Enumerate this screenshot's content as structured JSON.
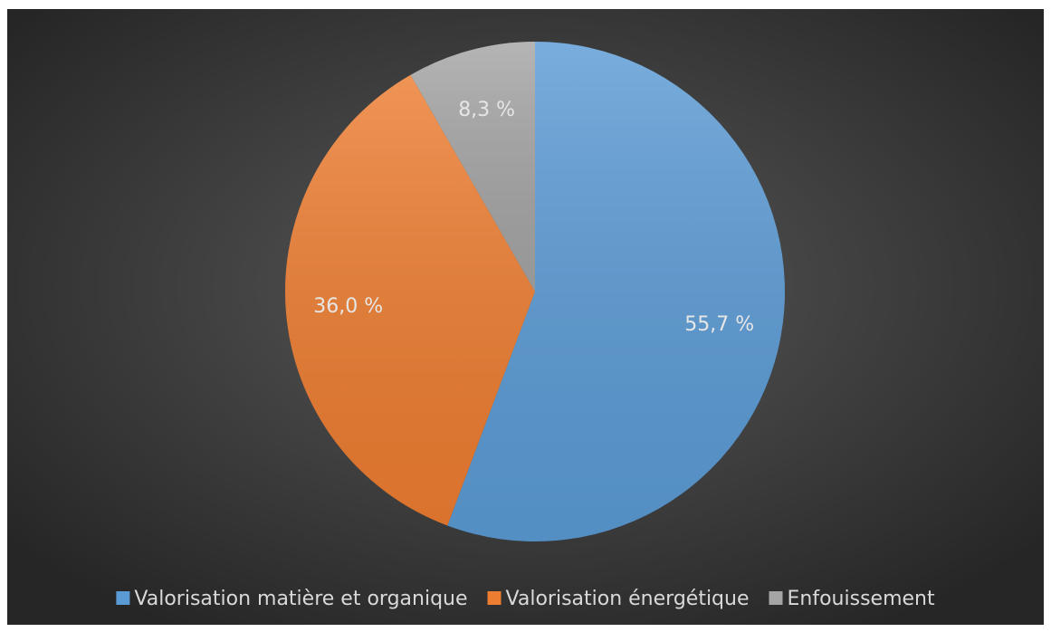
{
  "chart_data": {
    "type": "pie",
    "categories": [
      "Valorisation matière et organique",
      "Valorisation énergétique",
      "Enfouissement"
    ],
    "values": [
      55.7,
      36.0,
      8.3
    ],
    "value_labels": [
      "55,7 %",
      "36,0 %",
      "8,3 %"
    ],
    "colors": [
      "#5b9bd5",
      "#ed7d31",
      "#a5a5a5"
    ],
    "legend": "bottom"
  }
}
